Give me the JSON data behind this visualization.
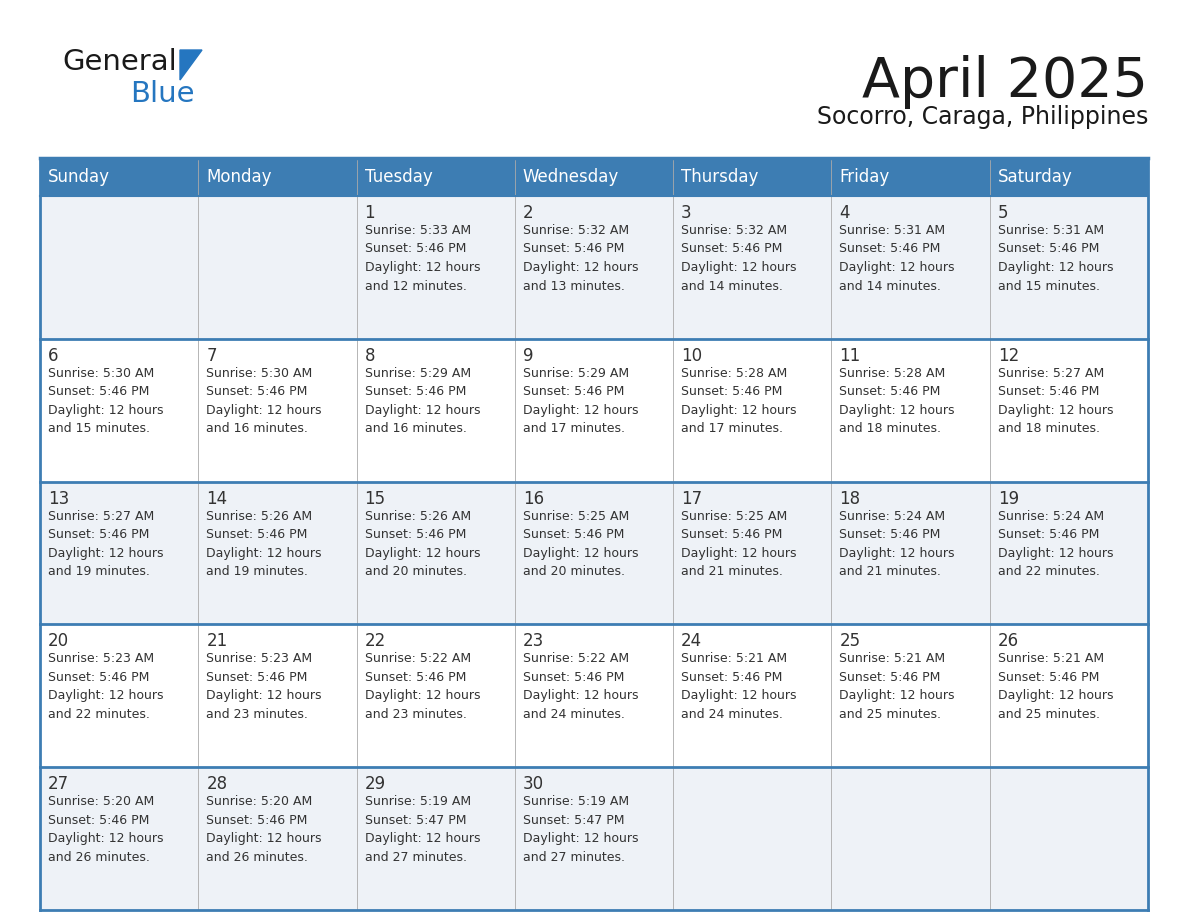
{
  "title": "April 2025",
  "subtitle": "Socorro, Caraga, Philippines",
  "header_bg_color": "#3d7db3",
  "header_text_color": "#ffffff",
  "cell_bg_light": "#eef2f7",
  "cell_bg_white": "#ffffff",
  "border_color": "#3d7db3",
  "border_color_thin": "#3d7db3",
  "text_color": "#333333",
  "days_of_week": [
    "Sunday",
    "Monday",
    "Tuesday",
    "Wednesday",
    "Thursday",
    "Friday",
    "Saturday"
  ],
  "weeks": [
    [
      {
        "day": "",
        "info": ""
      },
      {
        "day": "",
        "info": ""
      },
      {
        "day": "1",
        "info": "Sunrise: 5:33 AM\nSunset: 5:46 PM\nDaylight: 12 hours\nand 12 minutes."
      },
      {
        "day": "2",
        "info": "Sunrise: 5:32 AM\nSunset: 5:46 PM\nDaylight: 12 hours\nand 13 minutes."
      },
      {
        "day": "3",
        "info": "Sunrise: 5:32 AM\nSunset: 5:46 PM\nDaylight: 12 hours\nand 14 minutes."
      },
      {
        "day": "4",
        "info": "Sunrise: 5:31 AM\nSunset: 5:46 PM\nDaylight: 12 hours\nand 14 minutes."
      },
      {
        "day": "5",
        "info": "Sunrise: 5:31 AM\nSunset: 5:46 PM\nDaylight: 12 hours\nand 15 minutes."
      }
    ],
    [
      {
        "day": "6",
        "info": "Sunrise: 5:30 AM\nSunset: 5:46 PM\nDaylight: 12 hours\nand 15 minutes."
      },
      {
        "day": "7",
        "info": "Sunrise: 5:30 AM\nSunset: 5:46 PM\nDaylight: 12 hours\nand 16 minutes."
      },
      {
        "day": "8",
        "info": "Sunrise: 5:29 AM\nSunset: 5:46 PM\nDaylight: 12 hours\nand 16 minutes."
      },
      {
        "day": "9",
        "info": "Sunrise: 5:29 AM\nSunset: 5:46 PM\nDaylight: 12 hours\nand 17 minutes."
      },
      {
        "day": "10",
        "info": "Sunrise: 5:28 AM\nSunset: 5:46 PM\nDaylight: 12 hours\nand 17 minutes."
      },
      {
        "day": "11",
        "info": "Sunrise: 5:28 AM\nSunset: 5:46 PM\nDaylight: 12 hours\nand 18 minutes."
      },
      {
        "day": "12",
        "info": "Sunrise: 5:27 AM\nSunset: 5:46 PM\nDaylight: 12 hours\nand 18 minutes."
      }
    ],
    [
      {
        "day": "13",
        "info": "Sunrise: 5:27 AM\nSunset: 5:46 PM\nDaylight: 12 hours\nand 19 minutes."
      },
      {
        "day": "14",
        "info": "Sunrise: 5:26 AM\nSunset: 5:46 PM\nDaylight: 12 hours\nand 19 minutes."
      },
      {
        "day": "15",
        "info": "Sunrise: 5:26 AM\nSunset: 5:46 PM\nDaylight: 12 hours\nand 20 minutes."
      },
      {
        "day": "16",
        "info": "Sunrise: 5:25 AM\nSunset: 5:46 PM\nDaylight: 12 hours\nand 20 minutes."
      },
      {
        "day": "17",
        "info": "Sunrise: 5:25 AM\nSunset: 5:46 PM\nDaylight: 12 hours\nand 21 minutes."
      },
      {
        "day": "18",
        "info": "Sunrise: 5:24 AM\nSunset: 5:46 PM\nDaylight: 12 hours\nand 21 minutes."
      },
      {
        "day": "19",
        "info": "Sunrise: 5:24 AM\nSunset: 5:46 PM\nDaylight: 12 hours\nand 22 minutes."
      }
    ],
    [
      {
        "day": "20",
        "info": "Sunrise: 5:23 AM\nSunset: 5:46 PM\nDaylight: 12 hours\nand 22 minutes."
      },
      {
        "day": "21",
        "info": "Sunrise: 5:23 AM\nSunset: 5:46 PM\nDaylight: 12 hours\nand 23 minutes."
      },
      {
        "day": "22",
        "info": "Sunrise: 5:22 AM\nSunset: 5:46 PM\nDaylight: 12 hours\nand 23 minutes."
      },
      {
        "day": "23",
        "info": "Sunrise: 5:22 AM\nSunset: 5:46 PM\nDaylight: 12 hours\nand 24 minutes."
      },
      {
        "day": "24",
        "info": "Sunrise: 5:21 AM\nSunset: 5:46 PM\nDaylight: 12 hours\nand 24 minutes."
      },
      {
        "day": "25",
        "info": "Sunrise: 5:21 AM\nSunset: 5:46 PM\nDaylight: 12 hours\nand 25 minutes."
      },
      {
        "day": "26",
        "info": "Sunrise: 5:21 AM\nSunset: 5:46 PM\nDaylight: 12 hours\nand 25 minutes."
      }
    ],
    [
      {
        "day": "27",
        "info": "Sunrise: 5:20 AM\nSunset: 5:46 PM\nDaylight: 12 hours\nand 26 minutes."
      },
      {
        "day": "28",
        "info": "Sunrise: 5:20 AM\nSunset: 5:46 PM\nDaylight: 12 hours\nand 26 minutes."
      },
      {
        "day": "29",
        "info": "Sunrise: 5:19 AM\nSunset: 5:47 PM\nDaylight: 12 hours\nand 27 minutes."
      },
      {
        "day": "30",
        "info": "Sunrise: 5:19 AM\nSunset: 5:47 PM\nDaylight: 12 hours\nand 27 minutes."
      },
      {
        "day": "",
        "info": ""
      },
      {
        "day": "",
        "info": ""
      },
      {
        "day": "",
        "info": ""
      }
    ]
  ],
  "logo_text_general": "General",
  "logo_text_blue": "Blue",
  "logo_color_general": "#1a1a1a",
  "logo_color_blue": "#2576c0",
  "logo_triangle_color": "#2576c0",
  "title_fontsize": 40,
  "subtitle_fontsize": 17,
  "header_fontsize": 12,
  "day_num_fontsize": 12,
  "info_fontsize": 9
}
